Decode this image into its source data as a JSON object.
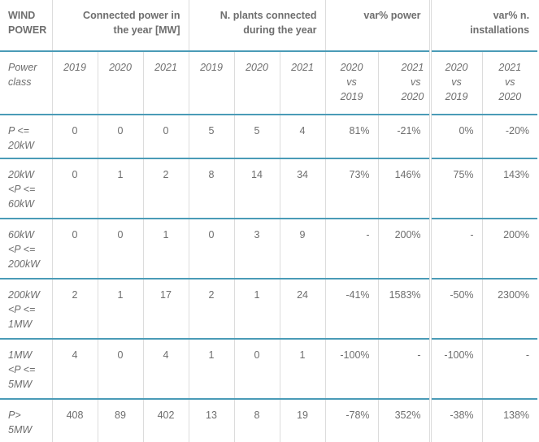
{
  "headers": {
    "wind_power": "WIND\nPOWER",
    "connected_power": "Connected power in the year [MW]",
    "plants_connected": "N. plants connected during the year",
    "var_power": "var% power",
    "var_installations": "var% n. installations"
  },
  "subheaders": {
    "power_class": "Power class",
    "y2019": "2019",
    "y2020": "2020",
    "y2021": "2021",
    "c2020vs2019": "2020 vs 2019",
    "c2021vs2020": "2021 vs 2020"
  },
  "rows": [
    {
      "power_class": "P <= 20kW",
      "cp2019": "0",
      "cp2020": "0",
      "cp2021": "0",
      "np2019": "5",
      "np2020": "5",
      "np2021": "4",
      "vp2020": "81%",
      "vp2021": "-21%",
      "vi2020": "0%",
      "vi2021": "-20%"
    },
    {
      "power_class": "20kW <P <= 60kW",
      "cp2019": "0",
      "cp2020": "1",
      "cp2021": "2",
      "np2019": "8",
      "np2020": "14",
      "np2021": "34",
      "vp2020": "73%",
      "vp2021": "146%",
      "vi2020": "75%",
      "vi2021": "143%"
    },
    {
      "power_class": "60kW <P <= 200kW",
      "cp2019": "0",
      "cp2020": "0",
      "cp2021": "1",
      "np2019": "0",
      "np2020": "3",
      "np2021": "9",
      "vp2020": "-",
      "vp2021": "200%",
      "vi2020": "-",
      "vi2021": "200%"
    },
    {
      "power_class": "200kW <P <= 1MW",
      "cp2019": "2",
      "cp2020": "1",
      "cp2021": "17",
      "np2019": "2",
      "np2020": "1",
      "np2021": "24",
      "vp2020": "-41%",
      "vp2021": "1583%",
      "vi2020": "-50%",
      "vi2021": "2300%"
    },
    {
      "power_class": "1MW <P <= 5MW",
      "cp2019": "4",
      "cp2020": "0",
      "cp2021": "4",
      "np2019": "1",
      "np2020": "0",
      "np2021": "1",
      "vp2020": "-100%",
      "vp2021": "-",
      "vi2020": "-100%",
      "vi2021": "-"
    },
    {
      "power_class": "P> 5MW",
      "cp2019": "408",
      "cp2020": "89",
      "cp2021": "402",
      "np2019": "13",
      "np2020": "8",
      "np2021": "19",
      "vp2020": "-78%",
      "vp2021": "352%",
      "vi2020": "-38%",
      "vi2021": "138%"
    }
  ],
  "colors": {
    "text": "#6e6e6e",
    "rule": "#4a9bb7",
    "divider": "#dcdcdc"
  }
}
